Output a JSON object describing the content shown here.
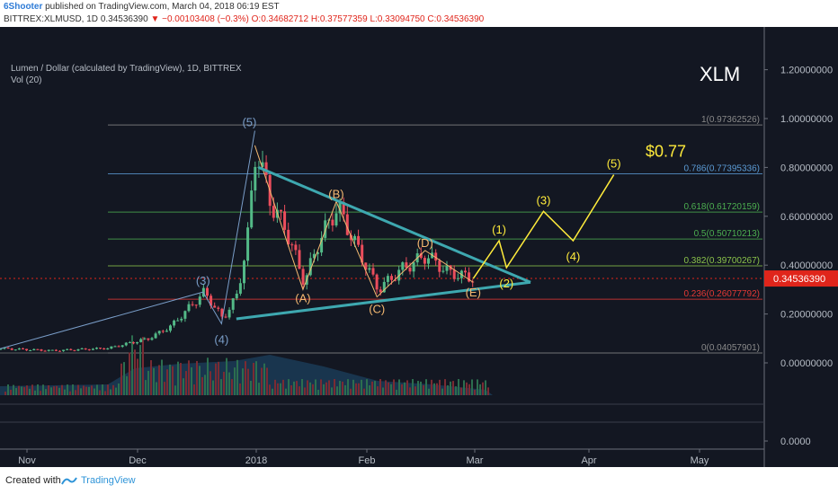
{
  "header": {
    "author": "6Shooter",
    "published": "published on TradingView.com, March 04, 2018 06:19 EST",
    "symbol_line": "BITTREX:XLMUSD, 1D",
    "last": "0.34536390",
    "change": "▼ −0.00103408 (−0.3%)",
    "o": "O:0.34682712",
    "h": "H:0.37577359",
    "l": "L:0.33094750",
    "c": "C:0.34536390"
  },
  "legend": {
    "title": "Lumen / Dollar (calculated by TradingView), 1D, BITTREX",
    "vol": "Vol (20)"
  },
  "symbol_tag": "XLM",
  "price_axis": {
    "ticks": [
      "1.20000000",
      "1.00000000",
      "0.80000000",
      "0.60000000",
      "0.40000000",
      "0.20000000",
      "0.00000000",
      "0.0000"
    ],
    "current_price": "0.34536390"
  },
  "time_axis": [
    "Nov",
    "Dec",
    "2018",
    "Feb",
    "Mar",
    "Apr",
    "May"
  ],
  "fib_levels": [
    {
      "label": "1(0.97362526)",
      "value": 0.97362526,
      "color": "#8a8a8a"
    },
    {
      "label": "0.786(0.77395336)",
      "value": 0.77395336,
      "color": "#5b9bd5"
    },
    {
      "label": "0.618(0.61720159)",
      "value": 0.61720159,
      "color": "#4caf50"
    },
    {
      "label": "0.5(0.50710213)",
      "value": 0.50710213,
      "color": "#4caf50"
    },
    {
      "label": "0.382(0.39700267)",
      "value": 0.39700267,
      "color": "#8bc34a"
    },
    {
      "label": "0.236(0.26077792)",
      "value": 0.26077792,
      "color": "#e53935"
    },
    {
      "label": "0(0.04057901)",
      "value": 0.04057901,
      "color": "#8a8a8a"
    }
  ],
  "wave_labels_blue": [
    "(3)",
    "(4)",
    "(5)"
  ],
  "wave_labels_orange": [
    "(A)",
    "(B)",
    "(C)",
    "(D)",
    "(E)"
  ],
  "wave_labels_yellow": [
    "(1)",
    "(2)",
    "(3)",
    "(4)",
    "(5)"
  ],
  "target_label": "$0.77",
  "footer": {
    "created": "Created with",
    "brand": "TradingView"
  },
  "colors": {
    "bg": "#131722",
    "up": "#53b987",
    "down": "#eb4d5c",
    "triangle": "#3ea8b0",
    "projection": "#ffeb3b",
    "blue_wave": "#7a9ec9",
    "orange_wave": "#f5b971",
    "price_tag": "#e0251b"
  },
  "chart_data": {
    "type": "candlestick",
    "title": "Lumen / Dollar (calculated by TradingView), 1D, BITTREX",
    "ylim": [
      0,
      1.25
    ],
    "x_labels": [
      "Nov",
      "Dec",
      "2018",
      "Feb",
      "Mar",
      "Apr",
      "May"
    ],
    "key_points": [
      {
        "label": "(3)",
        "x": "2017-12-21",
        "y": 0.29
      },
      {
        "label": "(4)",
        "x": "2017-12-26",
        "y": 0.16
      },
      {
        "label": "(5)",
        "x": "2018-01-04",
        "y": 0.94
      },
      {
        "label": "(A)",
        "x": "2018-01-17",
        "y": 0.3
      },
      {
        "label": "(B)",
        "x": "2018-01-26",
        "y": 0.66
      },
      {
        "label": "(C)",
        "x": "2018-02-06",
        "y": 0.27
      },
      {
        "label": "(D)",
        "x": "2018-02-19",
        "y": 0.46
      },
      {
        "label": "(E)",
        "x": "2018-03-04",
        "y": 0.33
      }
    ],
    "projection": [
      {
        "label": "(1)",
        "x": "2018-03-11",
        "y": 0.5
      },
      {
        "label": "(2)",
        "x": "2018-03-13",
        "y": 0.39
      },
      {
        "label": "(3)",
        "x": "2018-03-23",
        "y": 0.62
      },
      {
        "label": "(4)",
        "x": "2018-03-31",
        "y": 0.5
      },
      {
        "label": "(5)",
        "x": "2018-04-11",
        "y": 0.77
      }
    ],
    "last_price": 0.3453639
  }
}
